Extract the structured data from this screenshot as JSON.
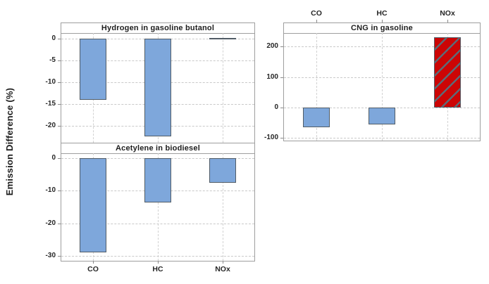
{
  "ylabel": "Emission Difference (%)",
  "colors": {
    "bar_blue": "#7EA7DB",
    "bar_red": "#CC0505",
    "bar_border": "#515C66",
    "hatch_stripe": "#5C6B77",
    "grid": "#C9C9C9",
    "panel_border": "#9E9E9E",
    "text": "#262626"
  },
  "chart_data": [
    {
      "type": "bar",
      "panel": "top-left",
      "title": "Hydrogen in gasoline butanol",
      "categories": [
        "CO",
        "HC",
        "NOx"
      ],
      "values": [
        -14,
        -22.5,
        0
      ],
      "bar_styles": [
        "blue",
        "blue",
        "blue"
      ],
      "yticks": [
        0,
        -5,
        -10,
        -15,
        -20
      ],
      "ylim": [
        -23.9,
        1.3
      ],
      "grid": true,
      "category_labels_shown": "none",
      "legend": "none"
    },
    {
      "type": "bar",
      "panel": "bottom-left",
      "title": "Acetylene in biodiesel",
      "categories": [
        "CO",
        "HC",
        "NOx"
      ],
      "values": [
        -29,
        -13.5,
        -7.5
      ],
      "bar_styles": [
        "blue",
        "blue",
        "blue"
      ],
      "yticks": [
        0,
        -10,
        -20,
        -30
      ],
      "ylim": [
        -31.5,
        1.5
      ],
      "grid": true,
      "category_labels_shown": "bottom",
      "legend": "none"
    },
    {
      "type": "bar",
      "panel": "right",
      "title": "CNG in gasoline",
      "categories": [
        "CO",
        "HC",
        "NOx"
      ],
      "values": [
        -65,
        -55,
        230
      ],
      "bar_styles": [
        "blue",
        "blue",
        "red-hatched"
      ],
      "yticks": [
        200,
        100,
        0,
        -100
      ],
      "ylim": [
        -108.5,
        245
      ],
      "grid": true,
      "category_labels_shown": "top",
      "legend": "none"
    }
  ]
}
